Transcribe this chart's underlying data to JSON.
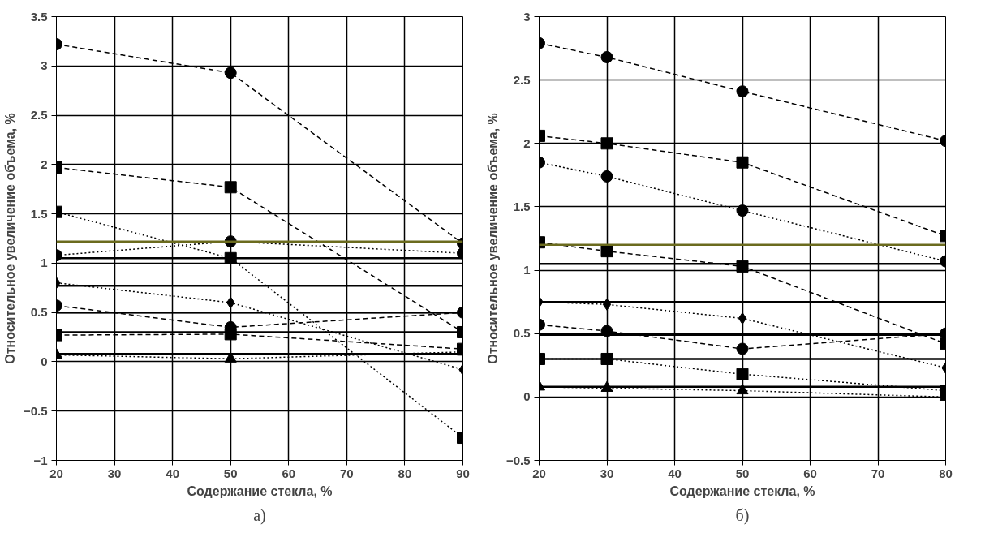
{
  "chart_data": [
    {
      "type": "line",
      "subtitle": "а)",
      "xlabel": "Содержание стекла, %",
      "ylabel": "Относительное увеличение объема, %",
      "x": [
        20,
        50,
        90
      ],
      "xlim": [
        20,
        90
      ],
      "xticks": [
        20,
        30,
        40,
        50,
        60,
        70,
        80,
        90
      ],
      "ylim": [
        -1,
        3.5
      ],
      "yticks": [
        -1,
        -0.5,
        0,
        0.5,
        1,
        1.5,
        2,
        2.5,
        3,
        3.5
      ],
      "grid": true,
      "series": [
        {
          "color": "#000000",
          "marker": "circle",
          "line_style": "dashed",
          "values": [
            3.22,
            2.93,
            1.2
          ]
        },
        {
          "color": "#000000",
          "marker": "square",
          "line_style": "dashed",
          "values": [
            1.97,
            1.77,
            0.3
          ]
        },
        {
          "color": "#000000",
          "marker": "square",
          "line_style": "dotted",
          "values": [
            1.52,
            1.05,
            -0.77
          ]
        },
        {
          "color": "#000000",
          "marker": "circle",
          "line_style": "dotted",
          "values": [
            1.08,
            1.22,
            1.1
          ]
        },
        {
          "color": "#000000",
          "marker": "diamond",
          "line_style": "dotted",
          "values": [
            0.8,
            0.6,
            -0.08
          ]
        },
        {
          "color": "#000000",
          "marker": "circle",
          "line_style": "dashed",
          "values": [
            0.57,
            0.35,
            0.5
          ]
        },
        {
          "color": "#000000",
          "marker": "square",
          "line_style": "dashed",
          "values": [
            0.27,
            0.28,
            0.13
          ]
        },
        {
          "color": "#000000",
          "marker": "triangle",
          "line_style": "dotted",
          "values": [
            0.07,
            0.03,
            0.1
          ]
        }
      ],
      "ref_lines": [
        {
          "axis": "y",
          "value": 1.22,
          "color": "#6b6b1e"
        },
        {
          "axis": "y",
          "value": 1.05,
          "color": "#000000"
        },
        {
          "axis": "y",
          "value": 0.77,
          "color": "#000000"
        },
        {
          "axis": "y",
          "value": 0.5,
          "color": "#000000"
        },
        {
          "axis": "y",
          "value": 0.3,
          "color": "#000000"
        },
        {
          "axis": "y",
          "value": 0.08,
          "color": "#000000"
        }
      ]
    },
    {
      "type": "line",
      "subtitle": "б)",
      "xlabel": "Содержание стекла, %",
      "ylabel": "Относительное увеличение объема, %",
      "x": [
        20,
        30,
        50,
        80
      ],
      "xlim": [
        20,
        80
      ],
      "xticks": [
        20,
        30,
        40,
        50,
        60,
        70,
        80
      ],
      "ylim": [
        -0.5,
        3
      ],
      "yticks": [
        -0.5,
        0,
        0.5,
        1,
        1.5,
        2,
        2.5,
        3
      ],
      "grid": true,
      "series": [
        {
          "color": "#000000",
          "marker": "circle",
          "line_style": "dashed",
          "values": [
            2.79,
            2.68,
            2.41,
            2.02
          ]
        },
        {
          "color": "#000000",
          "marker": "square",
          "line_style": "dashed",
          "values": [
            2.06,
            2.0,
            1.85,
            1.27
          ]
        },
        {
          "color": "#000000",
          "marker": "circle",
          "line_style": "dotted",
          "values": [
            1.85,
            1.74,
            1.47,
            1.07
          ]
        },
        {
          "color": "#000000",
          "marker": "square",
          "line_style": "dashed",
          "values": [
            1.22,
            1.15,
            1.03,
            0.42
          ]
        },
        {
          "color": "#000000",
          "marker": "diamond",
          "line_style": "dotted",
          "values": [
            0.75,
            0.73,
            0.62,
            0.23
          ]
        },
        {
          "color": "#000000",
          "marker": "circle",
          "line_style": "dashed",
          "values": [
            0.57,
            0.52,
            0.38,
            0.5
          ]
        },
        {
          "color": "#000000",
          "marker": "square",
          "line_style": "dotted",
          "values": [
            0.3,
            0.3,
            0.18,
            0.05
          ]
        },
        {
          "color": "#000000",
          "marker": "triangle",
          "line_style": "dotted",
          "values": [
            0.08,
            0.07,
            0.05,
            0.0
          ]
        }
      ],
      "ref_lines": [
        {
          "axis": "y",
          "value": 1.2,
          "color": "#6b6b1e"
        },
        {
          "axis": "y",
          "value": 1.05,
          "color": "#000000"
        },
        {
          "axis": "y",
          "value": 0.75,
          "color": "#000000"
        },
        {
          "axis": "y",
          "value": 0.49,
          "color": "#000000"
        },
        {
          "axis": "y",
          "value": 0.3,
          "color": "#000000"
        },
        {
          "axis": "y",
          "value": 0.08,
          "color": "#000000"
        }
      ]
    }
  ]
}
